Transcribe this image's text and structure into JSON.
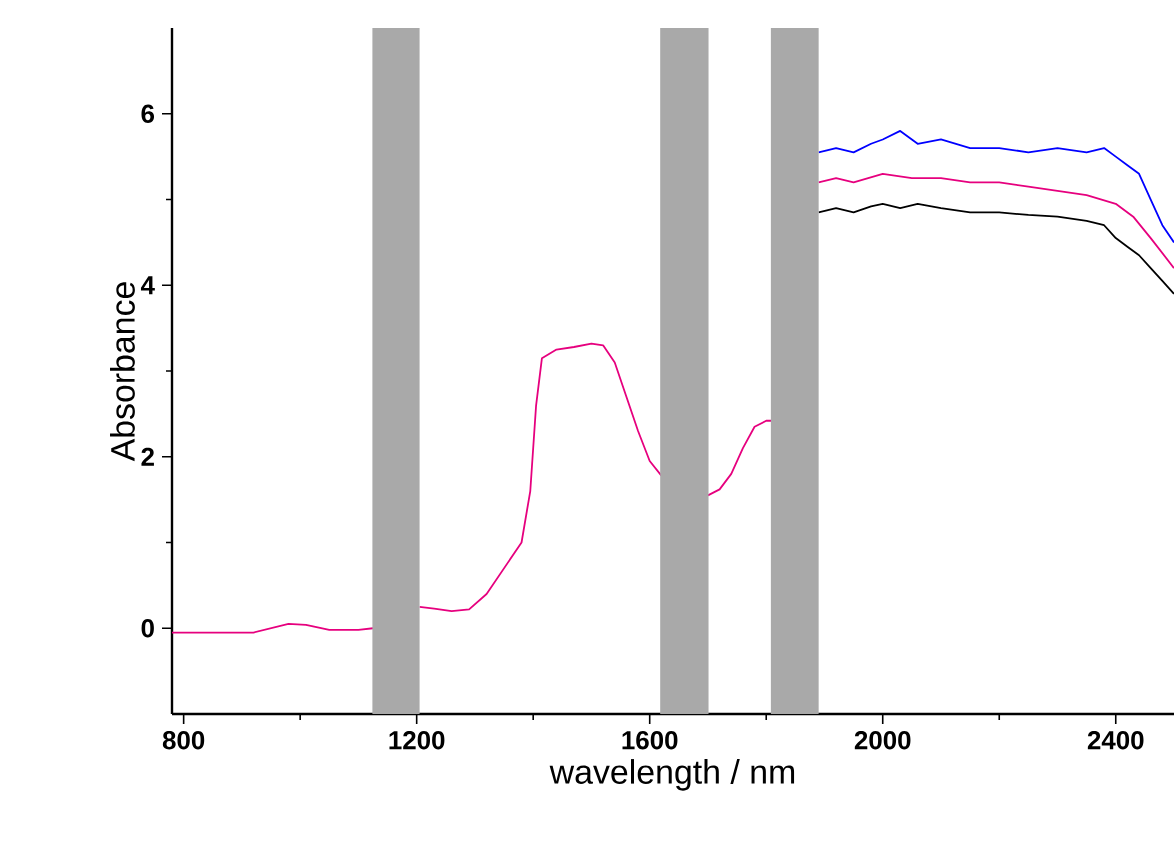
{
  "chart_data": {
    "type": "line",
    "xlabel": "wavelength / nm",
    "ylabel": "Absorbance",
    "xlim": [
      780,
      2500
    ],
    "ylim": [
      -1,
      7
    ],
    "xticks": [
      800,
      1200,
      1600,
      2000,
      2400
    ],
    "yticks": [
      0,
      2,
      4,
      6
    ],
    "line_style": "solid",
    "series": [
      {
        "color": "#000000",
        "x": [
          1890,
          1920,
          1950,
          1980,
          2000,
          2030,
          2060,
          2100,
          2150,
          2200,
          2250,
          2300,
          2350,
          2380,
          2400,
          2420,
          2440,
          2460,
          2480,
          2500
        ],
        "values": [
          4.85,
          4.9,
          4.85,
          4.92,
          4.95,
          4.9,
          4.95,
          4.9,
          4.85,
          4.85,
          4.82,
          4.8,
          4.75,
          4.7,
          4.55,
          4.45,
          4.35,
          4.2,
          4.05,
          3.9
        ]
      },
      {
        "color": "#0000ff",
        "x": [
          1890,
          1920,
          1950,
          1980,
          2000,
          2030,
          2060,
          2100,
          2150,
          2200,
          2250,
          2300,
          2350,
          2380,
          2400,
          2420,
          2440,
          2460,
          2480,
          2500
        ],
        "values": [
          5.55,
          5.6,
          5.55,
          5.65,
          5.7,
          5.8,
          5.65,
          5.7,
          5.6,
          5.6,
          5.55,
          5.6,
          5.55,
          5.6,
          5.5,
          5.4,
          5.3,
          5.0,
          4.7,
          4.5
        ]
      },
      {
        "color": "#e6007e",
        "x": [
          780,
          850,
          920,
          950,
          980,
          1010,
          1050,
          1100,
          1125,
          1160,
          1205,
          1230,
          1260,
          1290,
          1320,
          1350,
          1380,
          1395,
          1405,
          1415,
          1440,
          1470,
          1500,
          1520,
          1540,
          1560,
          1580,
          1600,
          1620,
          1660,
          1700,
          1720,
          1740,
          1760,
          1780,
          1800,
          1810,
          1850,
          1890,
          1920,
          1950,
          2000,
          2050,
          2100,
          2150,
          2200,
          2250,
          2300,
          2350,
          2400,
          2430,
          2460,
          2500
        ],
        "values": [
          -0.05,
          -0.05,
          -0.05,
          0.0,
          0.05,
          0.04,
          -0.02,
          -0.02,
          0.0,
          null,
          0.25,
          0.23,
          0.2,
          0.22,
          0.4,
          0.7,
          1.0,
          1.6,
          2.6,
          3.15,
          3.25,
          3.28,
          3.32,
          3.3,
          3.1,
          2.7,
          2.3,
          1.95,
          1.78,
          null,
          1.55,
          1.62,
          1.8,
          2.1,
          2.35,
          2.42,
          2.42,
          null,
          5.2,
          5.25,
          5.2,
          5.3,
          5.25,
          5.25,
          5.2,
          5.2,
          5.15,
          5.1,
          5.05,
          4.95,
          4.8,
          4.55,
          4.2
        ]
      }
    ],
    "bands": [
      {
        "axis": "x",
        "from": 1124,
        "to": 1205,
        "color": "#a9a9a9"
      },
      {
        "axis": "x",
        "from": 1618,
        "to": 1701,
        "color": "#a9a9a9"
      },
      {
        "axis": "x",
        "from": 1808,
        "to": 1890,
        "color": "#a9a9a9"
      }
    ]
  }
}
